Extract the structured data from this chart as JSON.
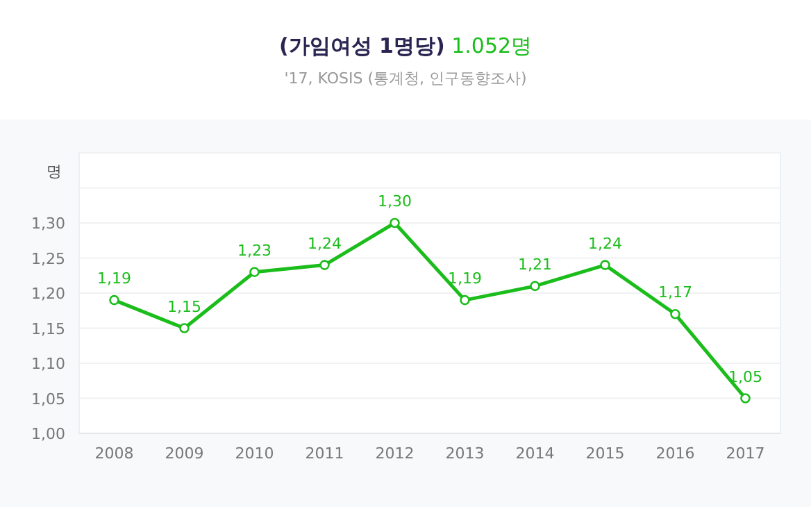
{
  "chart_data": {
    "type": "line",
    "title": "(가임여성 1명당)",
    "annotations": [
      "1.052명"
    ],
    "subtitle": "'17, KOSIS (통계청, 인구동향조사)",
    "ylabel": "명",
    "categories": [
      "2008",
      "2009",
      "2010",
      "2011",
      "2012",
      "2013",
      "2014",
      "2015",
      "2016",
      "2017"
    ],
    "series": [
      {
        "color": "#1bbd1b",
        "values": [
          1.19,
          1.15,
          1.23,
          1.24,
          1.3,
          1.19,
          1.21,
          1.24,
          1.17,
          1.05
        ],
        "value_labels": [
          "1,19",
          "1,15",
          "1,23",
          "1,24",
          "1,30",
          "1,19",
          "1,21",
          "1,24",
          "1,17",
          "1,05"
        ]
      }
    ],
    "ylim": [
      1.0,
      1.4
    ],
    "yticks": [
      {
        "value": 1.0,
        "label": "1,00"
      },
      {
        "value": 1.05,
        "label": "1,05"
      },
      {
        "value": 1.1,
        "label": "1,10"
      },
      {
        "value": 1.15,
        "label": "1,15"
      },
      {
        "value": 1.2,
        "label": "1,20"
      },
      {
        "value": 1.25,
        "label": "1,25"
      },
      {
        "value": 1.3,
        "label": "1,30"
      },
      {
        "value": 1.35,
        "label": null
      },
      {
        "value": 1.4,
        "label": null
      }
    ],
    "grid": "y",
    "marker": "circle",
    "line_style": "solid"
  }
}
